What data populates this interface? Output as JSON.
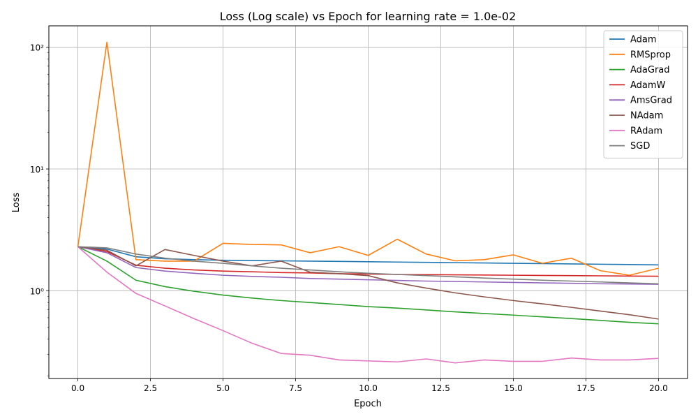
{
  "chart_data": {
    "type": "line",
    "title": "Loss (Log scale) vs Epoch for learning rate = 1.0e-02",
    "xlabel": "Epoch",
    "ylabel": "Loss",
    "xlim": [
      -1,
      21
    ],
    "ylim": [
      0.19,
      150
    ],
    "yscale": "log",
    "grid": true,
    "legend_position": "top-right",
    "x_ticks": [
      0,
      2.5,
      5,
      7.5,
      10,
      12.5,
      15,
      17.5,
      20
    ],
    "x_tick_labels": [
      "0.0",
      "2.5",
      "5.0",
      "7.5",
      "10.0",
      "12.5",
      "15.0",
      "17.5",
      "20.0"
    ],
    "y_ticks": [
      1,
      10,
      100
    ],
    "y_tick_labels": [
      "10⁰",
      "10¹",
      "10²"
    ],
    "x": [
      0,
      1,
      2,
      3,
      4,
      5,
      6,
      7,
      8,
      9,
      10,
      11,
      12,
      13,
      14,
      15,
      16,
      17,
      18,
      19,
      20
    ],
    "series": [
      {
        "name": "Adam",
        "color": "#1f77b4",
        "values": [
          2.3,
          2.2,
          1.9,
          1.83,
          1.8,
          1.78,
          1.77,
          1.76,
          1.75,
          1.74,
          1.73,
          1.72,
          1.71,
          1.7,
          1.69,
          1.68,
          1.67,
          1.66,
          1.65,
          1.64,
          1.63
        ]
      },
      {
        "name": "RMSprop",
        "color": "#ff7f0e",
        "values": [
          2.3,
          110,
          1.8,
          1.75,
          1.75,
          2.45,
          2.4,
          2.38,
          2.05,
          2.3,
          1.95,
          2.65,
          2.0,
          1.76,
          1.8,
          1.97,
          1.68,
          1.85,
          1.46,
          1.34,
          1.53
        ]
      },
      {
        "name": "AdaGrad",
        "color": "#2ca02c",
        "values": [
          2.3,
          1.75,
          1.22,
          1.08,
          0.99,
          0.92,
          0.87,
          0.83,
          0.8,
          0.77,
          0.74,
          0.72,
          0.695,
          0.67,
          0.65,
          0.63,
          0.61,
          0.59,
          0.57,
          0.55,
          0.535
        ]
      },
      {
        "name": "AdamW",
        "color": "#d62728",
        "values": [
          2.3,
          2.1,
          1.62,
          1.53,
          1.48,
          1.45,
          1.43,
          1.41,
          1.4,
          1.38,
          1.37,
          1.36,
          1.355,
          1.35,
          1.345,
          1.34,
          1.335,
          1.33,
          1.325,
          1.32,
          1.315
        ]
      },
      {
        "name": "AmsGrad",
        "color": "#9467bd",
        "values": [
          2.3,
          2.05,
          1.55,
          1.45,
          1.39,
          1.34,
          1.31,
          1.29,
          1.26,
          1.245,
          1.23,
          1.215,
          1.2,
          1.19,
          1.18,
          1.17,
          1.16,
          1.15,
          1.14,
          1.135,
          1.13
        ]
      },
      {
        "name": "NAdam",
        "color": "#8c564b",
        "values": [
          2.3,
          2.15,
          1.6,
          2.18,
          1.95,
          1.75,
          1.6,
          1.75,
          1.42,
          1.38,
          1.33,
          1.16,
          1.05,
          0.96,
          0.89,
          0.83,
          0.78,
          0.73,
          0.68,
          0.635,
          0.585
        ]
      },
      {
        "name": "RAdam",
        "color": "#e377c2",
        "values": [
          2.3,
          1.42,
          0.95,
          0.75,
          0.59,
          0.47,
          0.37,
          0.305,
          0.295,
          0.27,
          0.265,
          0.26,
          0.275,
          0.255,
          0.27,
          0.263,
          0.263,
          0.28,
          0.27,
          0.27,
          0.278
        ]
      },
      {
        "name": "SGD",
        "color": "#7f7f7f",
        "values": [
          2.3,
          2.25,
          2.0,
          1.85,
          1.75,
          1.68,
          1.6,
          1.53,
          1.48,
          1.43,
          1.39,
          1.36,
          1.33,
          1.3,
          1.27,
          1.245,
          1.22,
          1.2,
          1.18,
          1.16,
          1.14
        ]
      }
    ]
  }
}
